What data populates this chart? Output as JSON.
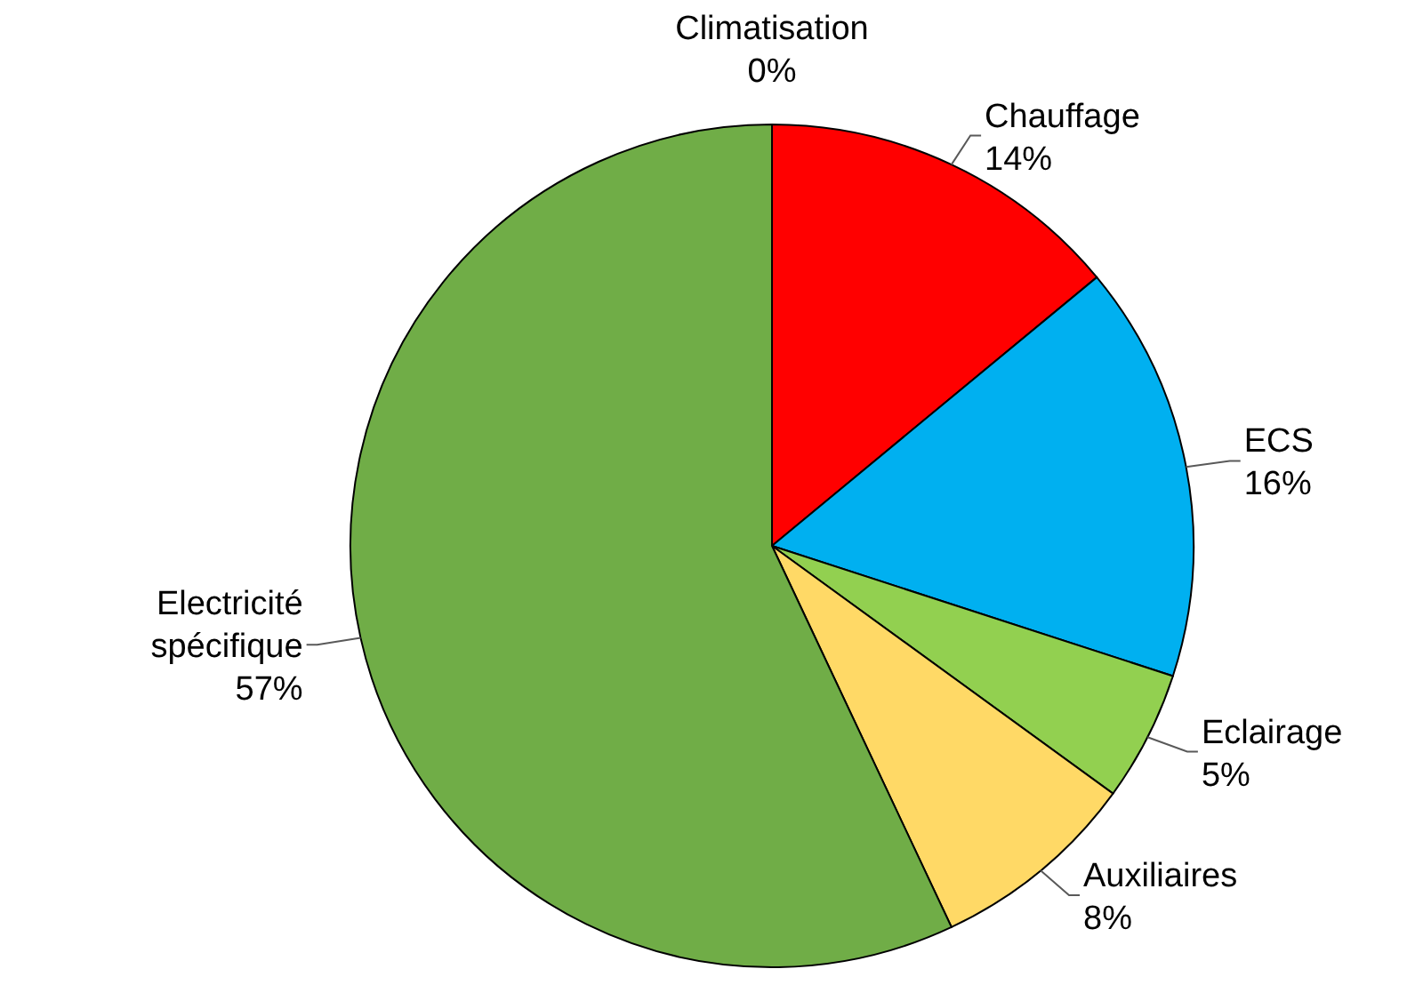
{
  "chart_data": {
    "type": "pie",
    "categories": [
      "Climatisation",
      "Chauffage",
      "ECS",
      "Eclairage",
      "Auxiliaires",
      "Electricité spécifique"
    ],
    "values": [
      0,
      14,
      16,
      5,
      8,
      57
    ],
    "colors": [
      "#7030a0",
      "#ff0000",
      "#00b0f0",
      "#92d050",
      "#ffd966",
      "#70ad47"
    ],
    "value_labels": [
      "0%",
      "14%",
      "16%",
      "5%",
      "8%",
      "57%"
    ],
    "legend": false
  }
}
